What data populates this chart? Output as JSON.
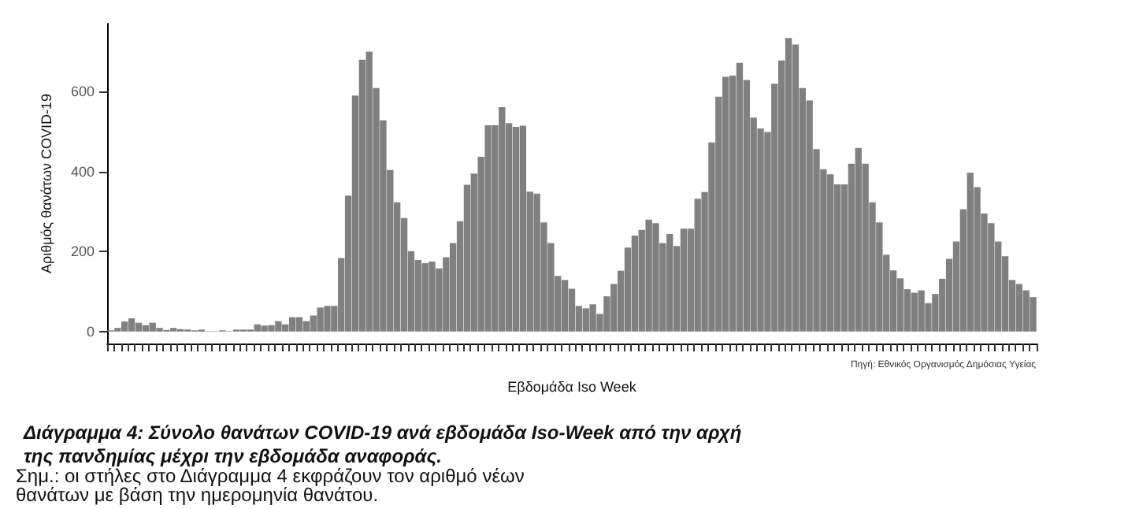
{
  "chart_data": {
    "type": "bar",
    "title": "Διάγραμμα 4: Σύνολο θανάτων COVID-19 ανά εβδομάδα Iso-Week από την αρχή της πανδημίας μέχρι την εβδομάδα αναφοράς.",
    "xlabel": "Εβδομάδα Iso Week",
    "ylabel": "Αριθμός θανάτων COVID-19",
    "annotations": [
      "Πηγή: Εθνικός Οργανισμός Δημόσιας Υγείας",
      "Σημ.: οι στήλες στο Διάγραμμα 4 εκφράζουν τον αριθμό νέων θανάτων με βάση την ημερομηνία θανάτου."
    ],
    "categories": [
      null,
      null,
      null,
      null,
      null,
      null,
      null,
      null,
      null,
      null,
      null,
      null,
      null,
      null,
      null,
      null,
      null,
      null,
      null,
      null,
      null,
      null,
      null,
      null,
      null,
      null,
      null,
      null,
      null,
      null,
      null,
      null,
      null,
      null,
      null,
      null,
      null,
      null,
      null,
      null,
      null,
      null,
      null,
      null,
      null,
      null,
      null,
      null,
      null,
      null,
      null,
      null,
      null,
      null,
      null,
      null,
      null,
      null,
      null,
      null,
      null,
      null,
      null,
      null,
      null,
      null,
      null,
      null,
      null,
      null,
      null,
      null,
      null,
      null,
      null,
      null,
      null,
      null,
      null,
      null,
      null,
      null,
      null,
      null,
      null,
      null,
      null,
      null,
      null,
      null,
      null,
      null,
      null,
      null,
      null,
      null,
      null,
      null,
      null,
      null,
      null,
      null,
      null,
      null,
      null,
      null,
      null,
      null,
      null,
      null,
      null,
      null,
      null,
      null,
      null,
      null,
      null,
      null,
      null,
      null,
      null,
      null,
      null,
      null,
      null,
      null,
      null,
      null,
      null,
      null,
      null,
      null,
      null
    ],
    "values": [
      3,
      9,
      25,
      33,
      22,
      16,
      22,
      9,
      4,
      9,
      6,
      5,
      3,
      5,
      1,
      1,
      3,
      1,
      5,
      5,
      5,
      18,
      15,
      16,
      26,
      18,
      36,
      36,
      26,
      40,
      60,
      64,
      64,
      184,
      340,
      590,
      680,
      700,
      609,
      528,
      404,
      323,
      284,
      201,
      179,
      171,
      175,
      158,
      186,
      221,
      276,
      367,
      395,
      437,
      516,
      516,
      561,
      521,
      512,
      515,
      350,
      345,
      273,
      221,
      139,
      129,
      107,
      64,
      58,
      68,
      44,
      88,
      119,
      152,
      210,
      240,
      254,
      280,
      271,
      221,
      244,
      214,
      257,
      257,
      332,
      349,
      473,
      587,
      637,
      640,
      672,
      629,
      535,
      508,
      499,
      620,
      678,
      734,
      718,
      609,
      578,
      456,
      406,
      393,
      368,
      368,
      420,
      459,
      420,
      323,
      273,
      192,
      153,
      133,
      106,
      97,
      103,
      71,
      94,
      132,
      182,
      225,
      306,
      397,
      361,
      295,
      271,
      225,
      188,
      129,
      119,
      103,
      86
    ],
    "color": "#808080",
    "ylim": [
      -30,
      770
    ],
    "yticks": [
      0,
      200,
      400,
      600
    ],
    "grid": false,
    "tick_labels": "y"
  }
}
